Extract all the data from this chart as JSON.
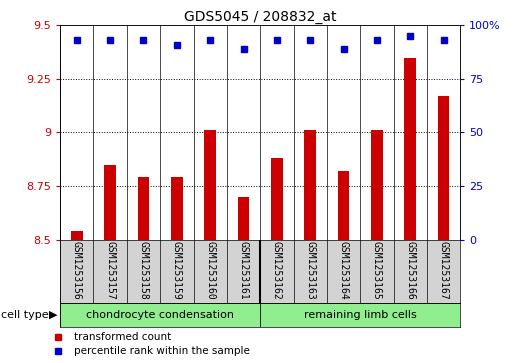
{
  "title": "GDS5045 / 208832_at",
  "categories": [
    "GSM1253156",
    "GSM1253157",
    "GSM1253158",
    "GSM1253159",
    "GSM1253160",
    "GSM1253161",
    "GSM1253162",
    "GSM1253163",
    "GSM1253164",
    "GSM1253165",
    "GSM1253166",
    "GSM1253167"
  ],
  "bar_values": [
    8.54,
    8.85,
    8.79,
    8.79,
    9.01,
    8.7,
    8.88,
    9.01,
    8.82,
    9.01,
    9.35,
    9.17
  ],
  "dot_values": [
    93,
    93,
    93,
    91,
    93,
    89,
    93,
    93,
    89,
    93,
    95,
    93
  ],
  "bar_color": "#cc0000",
  "dot_color": "#0000cc",
  "ylim_left": [
    8.5,
    9.5
  ],
  "ylim_right": [
    0,
    100
  ],
  "yticks_left": [
    8.5,
    8.75,
    9.0,
    9.25,
    9.5
  ],
  "ytick_labels_left": [
    "8.5",
    "8.75",
    "9",
    "9.25",
    "9.5"
  ],
  "yticks_right": [
    0,
    25,
    50,
    75,
    100
  ],
  "ytick_labels_right": [
    "0",
    "25",
    "50",
    "75",
    "100%"
  ],
  "group1_label": "chondrocyte condensation",
  "group2_label": "remaining limb cells",
  "cell_type_label": "cell type",
  "legend_bar_label": "transformed count",
  "legend_dot_label": "percentile rank within the sample",
  "group_color": "#90ee90",
  "bg_color": "#d3d3d3",
  "plot_bg": "#ffffff",
  "bar_width": 0.35
}
